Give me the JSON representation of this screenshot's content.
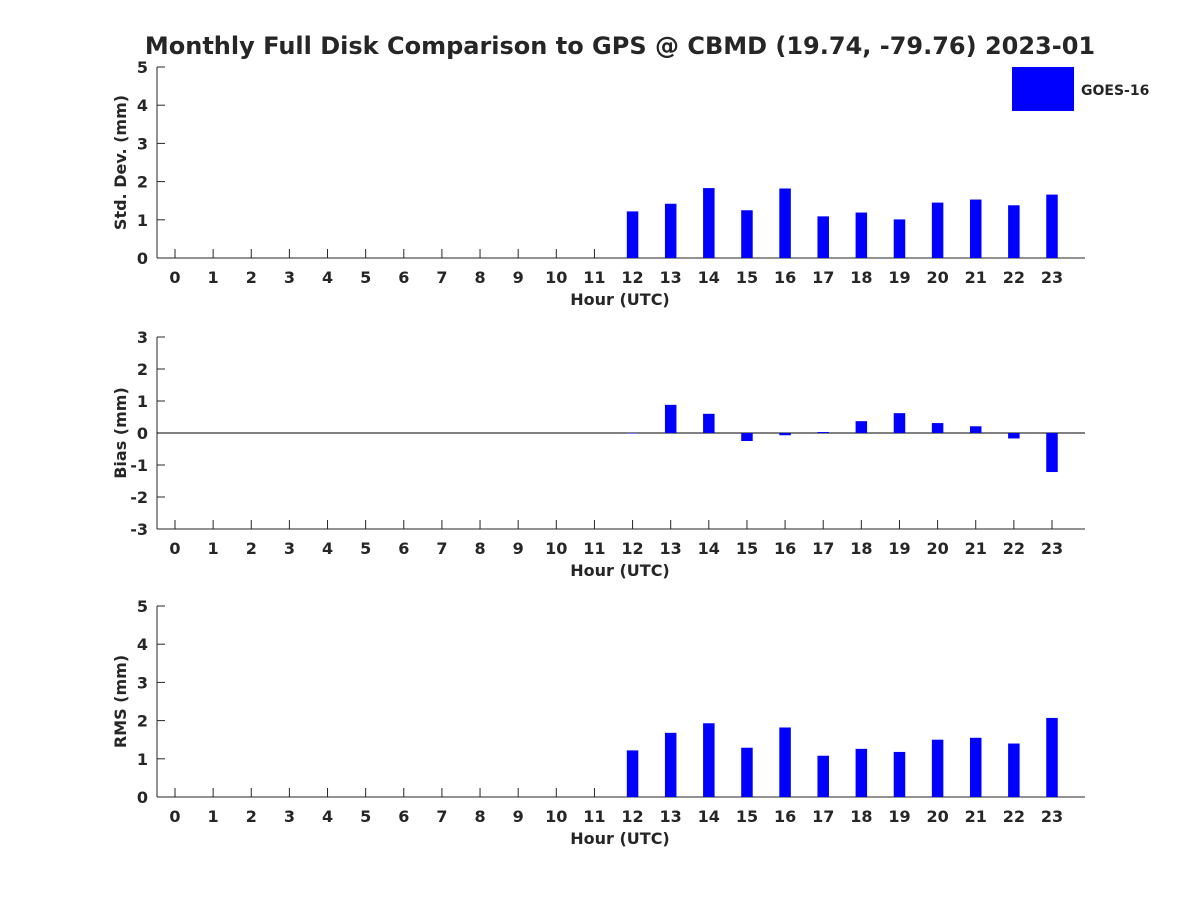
{
  "title": "Monthly Full Disk Comparison to GPS @ CBMD (19.74, -79.76) 2023-01",
  "legend": {
    "label": "GOES-16",
    "color": "#0000ff",
    "placement": "top-right"
  },
  "chart_data": [
    {
      "type": "bar",
      "panel": "std-dev",
      "xlabel": "Hour (UTC)",
      "ylabel": "Std. Dev. (mm)",
      "ylim": [
        0,
        5
      ],
      "yticks": [
        0,
        1,
        2,
        3,
        4,
        5
      ],
      "grid": false,
      "categories": [
        "0",
        "1",
        "2",
        "3",
        "4",
        "5",
        "6",
        "7",
        "8",
        "9",
        "10",
        "11",
        "12",
        "13",
        "14",
        "15",
        "16",
        "17",
        "18",
        "19",
        "20",
        "21",
        "22",
        "23"
      ],
      "series": [
        {
          "name": "GOES-16",
          "values": [
            null,
            null,
            null,
            null,
            null,
            null,
            null,
            null,
            null,
            null,
            null,
            null,
            1.22,
            1.42,
            1.83,
            1.25,
            1.82,
            1.09,
            1.19,
            1.01,
            1.45,
            1.53,
            1.38,
            1.66
          ]
        }
      ]
    },
    {
      "type": "bar",
      "panel": "bias",
      "xlabel": "Hour (UTC)",
      "ylabel": "Bias (mm)",
      "ylim": [
        -3,
        3
      ],
      "yticks": [
        -3,
        -2,
        -1,
        0,
        1,
        2,
        3
      ],
      "zero_line": true,
      "grid": false,
      "categories": [
        "0",
        "1",
        "2",
        "3",
        "4",
        "5",
        "6",
        "7",
        "8",
        "9",
        "10",
        "11",
        "12",
        "13",
        "14",
        "15",
        "16",
        "17",
        "18",
        "19",
        "20",
        "21",
        "22",
        "23"
      ],
      "series": [
        {
          "name": "GOES-16",
          "values": [
            null,
            null,
            null,
            null,
            null,
            null,
            null,
            null,
            null,
            null,
            null,
            null,
            0.0,
            0.88,
            0.6,
            -0.25,
            -0.07,
            0.03,
            0.37,
            0.62,
            0.31,
            0.21,
            -0.17,
            -1.22
          ]
        }
      ]
    },
    {
      "type": "bar",
      "panel": "rms",
      "xlabel": "Hour (UTC)",
      "ylabel": "RMS (mm)",
      "ylim": [
        0,
        5
      ],
      "yticks": [
        0,
        1,
        2,
        3,
        4,
        5
      ],
      "grid": false,
      "categories": [
        "0",
        "1",
        "2",
        "3",
        "4",
        "5",
        "6",
        "7",
        "8",
        "9",
        "10",
        "11",
        "12",
        "13",
        "14",
        "15",
        "16",
        "17",
        "18",
        "19",
        "20",
        "21",
        "22",
        "23"
      ],
      "series": [
        {
          "name": "GOES-16",
          "values": [
            null,
            null,
            null,
            null,
            null,
            null,
            null,
            null,
            null,
            null,
            null,
            null,
            1.22,
            1.68,
            1.93,
            1.29,
            1.82,
            1.08,
            1.26,
            1.18,
            1.5,
            1.55,
            1.4,
            2.07
          ]
        }
      ]
    }
  ]
}
